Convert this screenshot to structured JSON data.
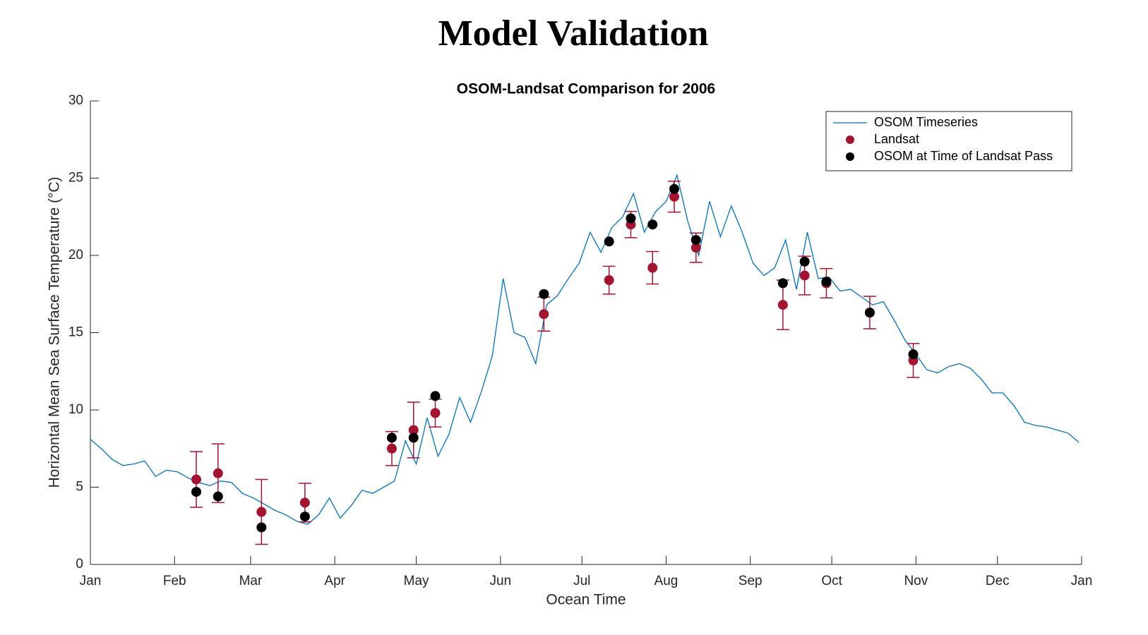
{
  "chart_data": {
    "type": "line",
    "title": "Model Validation",
    "subtitle": "OSOM-Landsat Comparison for 2006",
    "xlabel": "Ocean Time",
    "ylabel": "Horizontal Mean Sea Surface Temperature (°C)",
    "xlim": [
      0,
      365
    ],
    "xticks": [
      {
        "value": 0,
        "label": "Jan"
      },
      {
        "value": 31,
        "label": "Feb"
      },
      {
        "value": 59,
        "label": "Mar"
      },
      {
        "value": 90,
        "label": "Apr"
      },
      {
        "value": 120,
        "label": "May"
      },
      {
        "value": 151,
        "label": "Jun"
      },
      {
        "value": 181,
        "label": "Jul"
      },
      {
        "value": 212,
        "label": "Aug"
      },
      {
        "value": 243,
        "label": "Sep"
      },
      {
        "value": 273,
        "label": "Oct"
      },
      {
        "value": 304,
        "label": "Nov"
      },
      {
        "value": 334,
        "label": "Dec"
      },
      {
        "value": 365,
        "label": "Jan"
      }
    ],
    "ylim": [
      0,
      30
    ],
    "yticks": [
      0,
      5,
      10,
      15,
      20,
      25,
      30
    ],
    "legend": "northeast",
    "series": [
      {
        "name": "OSOM Timeseries",
        "color": "#0072bd",
        "style": "line",
        "x": [
          0,
          4,
          8,
          12,
          16,
          20,
          24,
          28,
          32,
          36,
          40,
          44,
          48,
          52,
          56,
          60,
          64,
          68,
          72,
          76,
          80,
          84,
          88,
          92,
          96,
          100,
          104,
          108,
          112,
          116,
          120,
          124,
          128,
          132,
          136,
          140,
          144,
          148,
          152,
          156,
          160,
          164,
          168,
          172,
          176,
          180,
          184,
          188,
          192,
          196,
          200,
          204,
          208,
          212,
          216,
          220,
          224,
          228,
          232,
          236,
          240,
          244,
          248,
          252,
          256,
          260,
          264,
          268,
          272,
          276,
          280,
          284,
          288,
          292,
          296,
          300,
          304,
          308,
          312,
          316,
          320,
          324,
          328,
          332,
          336,
          340,
          344,
          348,
          352,
          356,
          360,
          364
        ],
        "values": [
          8.1,
          7.5,
          6.8,
          6.4,
          6.5,
          6.7,
          5.7,
          6.1,
          6.0,
          5.6,
          5.3,
          5.1,
          5.4,
          5.3,
          4.6,
          4.3,
          3.9,
          3.5,
          3.2,
          2.8,
          2.6,
          3.2,
          4.3,
          3.0,
          3.8,
          4.8,
          4.6,
          5.0,
          5.4,
          8.0,
          6.5,
          9.5,
          7.0,
          8.4,
          10.8,
          9.2,
          11.2,
          13.5,
          18.5,
          15.0,
          14.7,
          13.0,
          16.8,
          17.4,
          18.5,
          19.5,
          21.5,
          20.2,
          21.8,
          22.5,
          24.0,
          21.5,
          22.8,
          23.5,
          25.2,
          22.2,
          20.0,
          23.5,
          21.2,
          23.2,
          21.5,
          19.5,
          18.7,
          19.2,
          21.0,
          17.8,
          21.5,
          18.5,
          18.6,
          17.7,
          17.8,
          17.3,
          16.8,
          17.0,
          15.8,
          14.5,
          13.6,
          12.6,
          12.4,
          12.8,
          13.0,
          12.7,
          12.0,
          11.1,
          11.1,
          10.3,
          9.2,
          9.0,
          8.9,
          8.7,
          8.5,
          7.9
        ]
      },
      {
        "name": "Landsat",
        "color": "#a2142f",
        "style": "marker",
        "x": [
          39,
          47,
          63,
          79,
          111,
          119,
          127,
          167,
          191,
          199,
          207,
          215,
          223,
          255,
          263,
          271,
          287,
          303
        ],
        "values": [
          5.5,
          5.9,
          3.4,
          4.0,
          7.5,
          8.7,
          9.8,
          16.2,
          18.4,
          22.0,
          19.2,
          23.8,
          20.5,
          16.8,
          18.7,
          18.2,
          16.3,
          13.2
        ],
        "errors": [
          1.8,
          1.9,
          2.1,
          1.25,
          1.1,
          1.8,
          0.9,
          1.1,
          0.9,
          0.85,
          1.05,
          1.0,
          0.95,
          1.6,
          1.25,
          0.95,
          1.05,
          1.1
        ]
      },
      {
        "name": "OSOM at Time of Landsat Pass",
        "color": "#000000",
        "style": "marker",
        "x": [
          39,
          47,
          63,
          79,
          111,
          119,
          127,
          167,
          191,
          199,
          207,
          215,
          223,
          255,
          263,
          271,
          287,
          303
        ],
        "values": [
          4.7,
          4.4,
          2.4,
          3.1,
          8.2,
          8.2,
          10.9,
          17.5,
          20.9,
          22.4,
          22.0,
          24.3,
          21.0,
          18.2,
          19.6,
          18.3,
          16.3,
          13.6
        ]
      }
    ]
  }
}
